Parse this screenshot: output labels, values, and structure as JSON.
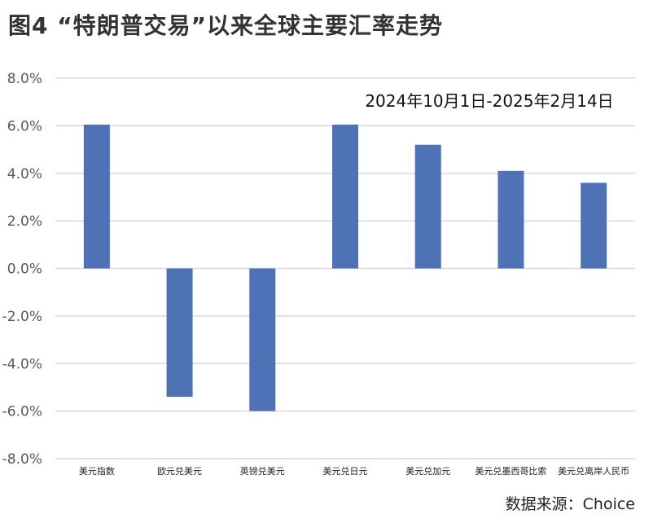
{
  "figure_title": "图4 “特朗普交易”以来全球主要汇率走势",
  "source": "数据来源：Choice",
  "colors": {
    "bar": "#4f71b5",
    "grid": "#d9d9d9",
    "axis_text": "#595959"
  },
  "chart_data": {
    "type": "bar",
    "annotation": "2024年10月1日-2025年2月14日",
    "categories": [
      "美元指数",
      "欧元兑美元",
      "英镑兑美元",
      "美元兑日元",
      "美元兑加元",
      "美元兑墨西哥比索",
      "美元兑离岸人民币"
    ],
    "values": [
      6.05,
      -5.4,
      -6.0,
      6.05,
      5.2,
      4.1,
      3.6
    ],
    "yticks": [
      "8.0%",
      "6.0%",
      "4.0%",
      "2.0%",
      "0.0%",
      "-2.0%",
      "-4.0%",
      "-6.0%",
      "-8.0%"
    ],
    "ylim": [
      -8,
      8
    ],
    "grid": true,
    "legend": "none"
  }
}
